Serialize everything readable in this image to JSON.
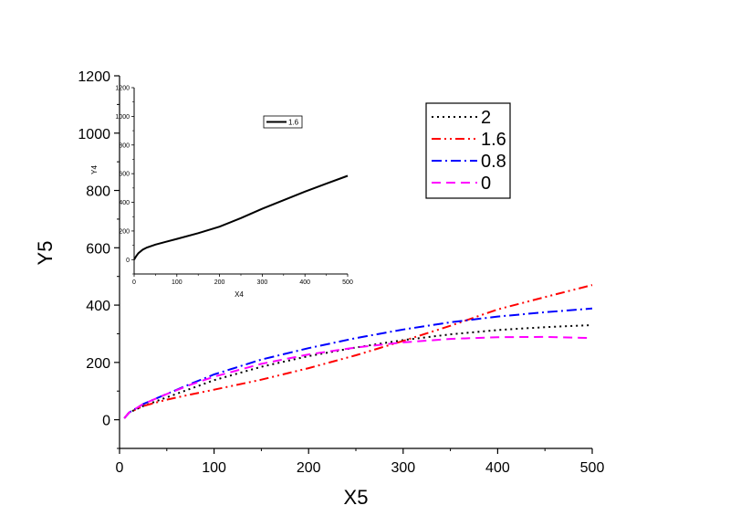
{
  "chart_data": [
    {
      "type": "line",
      "xlabel": "X5",
      "ylabel": "Y5",
      "xlim": [
        0,
        500
      ],
      "ylim": [
        -100,
        1200
      ],
      "xticks": [
        0,
        100,
        200,
        300,
        400,
        500
      ],
      "yticks": [
        0,
        200,
        400,
        600,
        800,
        1000,
        1200
      ],
      "legend_position": "top-right",
      "series": [
        {
          "name": "2",
          "color": "#000000",
          "style": "dotted",
          "x": [
            5,
            10,
            25,
            50,
            75,
            100,
            150,
            200,
            250,
            300,
            350,
            400,
            450,
            500
          ],
          "y": [
            5,
            25,
            48,
            78,
            108,
            138,
            185,
            222,
            252,
            278,
            298,
            313,
            323,
            330
          ]
        },
        {
          "name": "1.6",
          "color": "#ff0000",
          "style": "dashdotdot",
          "x": [
            5,
            10,
            25,
            50,
            75,
            100,
            150,
            200,
            250,
            300,
            350,
            400,
            450,
            500
          ],
          "y": [
            5,
            25,
            48,
            70,
            88,
            105,
            140,
            180,
            225,
            275,
            328,
            385,
            428,
            470
          ]
        },
        {
          "name": "0.8",
          "color": "#0000ff",
          "style": "dashdot",
          "x": [
            5,
            10,
            25,
            50,
            75,
            100,
            150,
            200,
            250,
            300,
            350,
            400,
            450,
            500
          ],
          "y": [
            5,
            25,
            55,
            90,
            125,
            158,
            210,
            250,
            285,
            315,
            340,
            360,
            375,
            388
          ]
        },
        {
          "name": "0",
          "color": "#ff00ff",
          "style": "dashed",
          "x": [
            5,
            10,
            25,
            50,
            75,
            100,
            150,
            200,
            250,
            300,
            350,
            400,
            450,
            500
          ],
          "y": [
            5,
            25,
            55,
            90,
            122,
            150,
            195,
            228,
            252,
            270,
            282,
            288,
            289,
            285
          ]
        }
      ]
    },
    {
      "type": "line",
      "xlabel": "X4",
      "ylabel": "Y4",
      "xlim": [
        0,
        500
      ],
      "ylim": [
        -100,
        1200
      ],
      "xticks": [
        0,
        100,
        200,
        300,
        400,
        500
      ],
      "yticks": [
        0,
        200,
        400,
        600,
        800,
        1000,
        1200
      ],
      "legend_position": "top-right",
      "series": [
        {
          "name": "1.6",
          "color": "#000000",
          "style": "solid",
          "x": [
            0,
            5,
            10,
            20,
            30,
            50,
            75,
            100,
            150,
            200,
            250,
            300,
            350,
            400,
            450,
            500
          ],
          "y": [
            0,
            25,
            45,
            70,
            85,
            105,
            125,
            145,
            185,
            230,
            290,
            355,
            415,
            475,
            530,
            585
          ]
        }
      ]
    }
  ]
}
